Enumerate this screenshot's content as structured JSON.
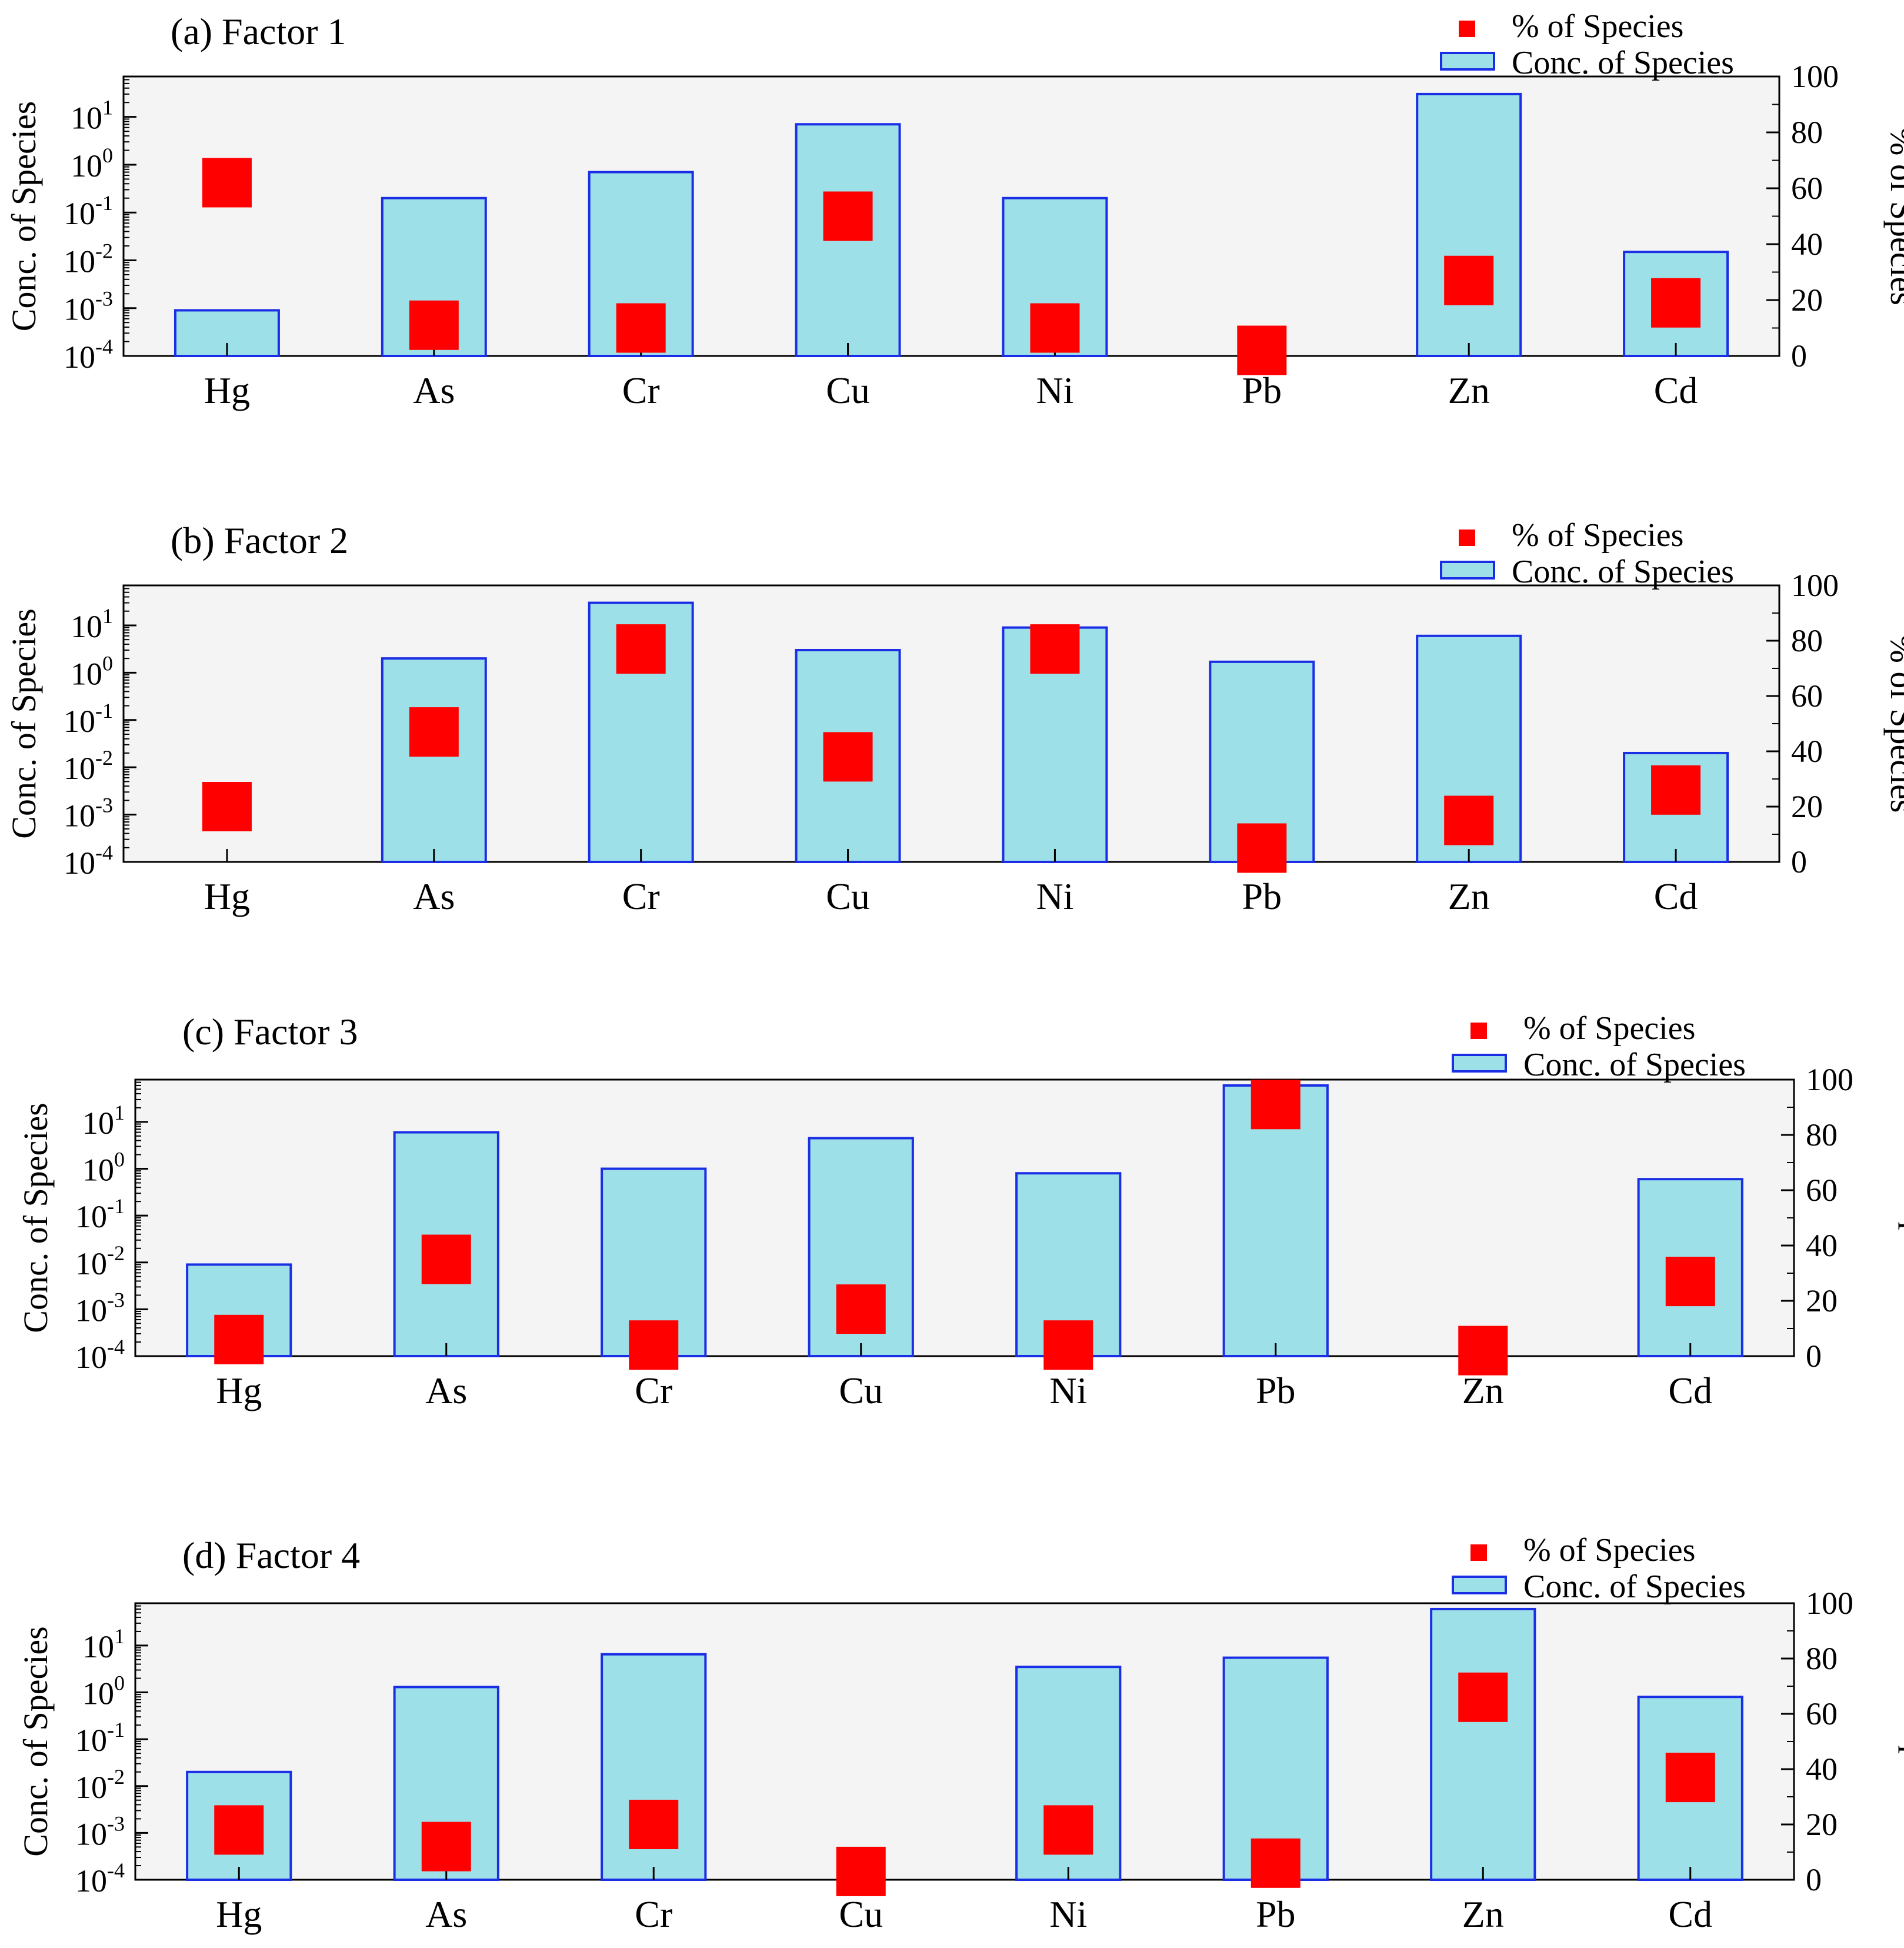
{
  "legend": {
    "pct_label": "% of Species",
    "conc_label": "Conc. of Species"
  },
  "axes": {
    "left_label": "Conc. of Species",
    "right_label": "% of Species",
    "left_ticks": [
      {
        "base": "10",
        "exp": "1",
        "value": 10
      },
      {
        "base": "10",
        "exp": "0",
        "value": 1
      },
      {
        "base": "10",
        "exp": "-1",
        "value": 0.1
      },
      {
        "base": "10",
        "exp": "-2",
        "value": 0.01
      },
      {
        "base": "10",
        "exp": "-3",
        "value": 0.001
      },
      {
        "base": "10",
        "exp": "-4",
        "value": 0.0001
      }
    ],
    "right_ticks": [
      "100",
      "80",
      "60",
      "40",
      "20",
      "0"
    ]
  },
  "colors": {
    "bar_fill": "#9ee0e8",
    "bar_edge": "#1a2ee6",
    "marker": "#ff0000",
    "plot_bg": "#f4f4f4"
  },
  "chart_data": [
    {
      "type": "bar",
      "title": "(a) Factor 1",
      "categories": [
        "Hg",
        "As",
        "Cr",
        "Cu",
        "Ni",
        "Pb",
        "Zn",
        "Cd"
      ],
      "yscale": "log",
      "ylim": [
        0.0001,
        70
      ],
      "y2lim": [
        0,
        100
      ],
      "series": [
        {
          "name": "Conc. of Species",
          "axis": "left",
          "values": [
            0.0009,
            0.2,
            0.7,
            7.0,
            0.2,
            null,
            30.0,
            0.015
          ]
        },
        {
          "name": "% of Species",
          "axis": "right",
          "values": [
            62,
            11,
            10,
            50,
            10,
            2,
            27,
            19
          ]
        }
      ]
    },
    {
      "type": "bar",
      "title": "(b) Factor 2",
      "categories": [
        "Hg",
        "As",
        "Cr",
        "Cu",
        "Ni",
        "Pb",
        "Zn",
        "Cd"
      ],
      "yscale": "log",
      "ylim": [
        0.0001,
        70
      ],
      "y2lim": [
        0,
        100
      ],
      "series": [
        {
          "name": "Conc. of Species",
          "axis": "left",
          "values": [
            null,
            2.0,
            30.0,
            3.0,
            9.0,
            1.7,
            6.0,
            0.02
          ]
        },
        {
          "name": "% of Species",
          "axis": "right",
          "values": [
            20,
            47,
            77,
            38,
            77,
            5,
            15,
            26
          ]
        }
      ]
    },
    {
      "type": "bar",
      "title": "(c) Factor 3",
      "categories": [
        "Hg",
        "As",
        "Cr",
        "Cu",
        "Ni",
        "Pb",
        "Zn",
        "Cd"
      ],
      "yscale": "log",
      "ylim": [
        0.0001,
        80
      ],
      "y2lim": [
        0,
        100
      ],
      "series": [
        {
          "name": "Conc. of Species",
          "axis": "left",
          "values": [
            0.009,
            6.0,
            1.0,
            4.5,
            0.8,
            60.0,
            null,
            0.6
          ]
        },
        {
          "name": "% of Species",
          "axis": "right",
          "values": [
            6,
            35,
            4,
            17,
            4,
            91,
            2,
            27
          ]
        }
      ]
    },
    {
      "type": "bar",
      "title": "(d) Factor 4",
      "categories": [
        "Hg",
        "As",
        "Cr",
        "Cu",
        "Ni",
        "Pb",
        "Zn",
        "Cd"
      ],
      "yscale": "log",
      "ylim": [
        0.0001,
        80
      ],
      "y2lim": [
        0,
        100
      ],
      "series": [
        {
          "name": "Conc. of Species",
          "axis": "left",
          "values": [
            0.02,
            1.3,
            6.5,
            null,
            3.5,
            5.5,
            60.0,
            0.8
          ]
        },
        {
          "name": "% of Species",
          "axis": "right",
          "values": [
            18,
            12,
            20,
            3,
            18,
            6,
            66,
            37
          ]
        }
      ]
    }
  ]
}
